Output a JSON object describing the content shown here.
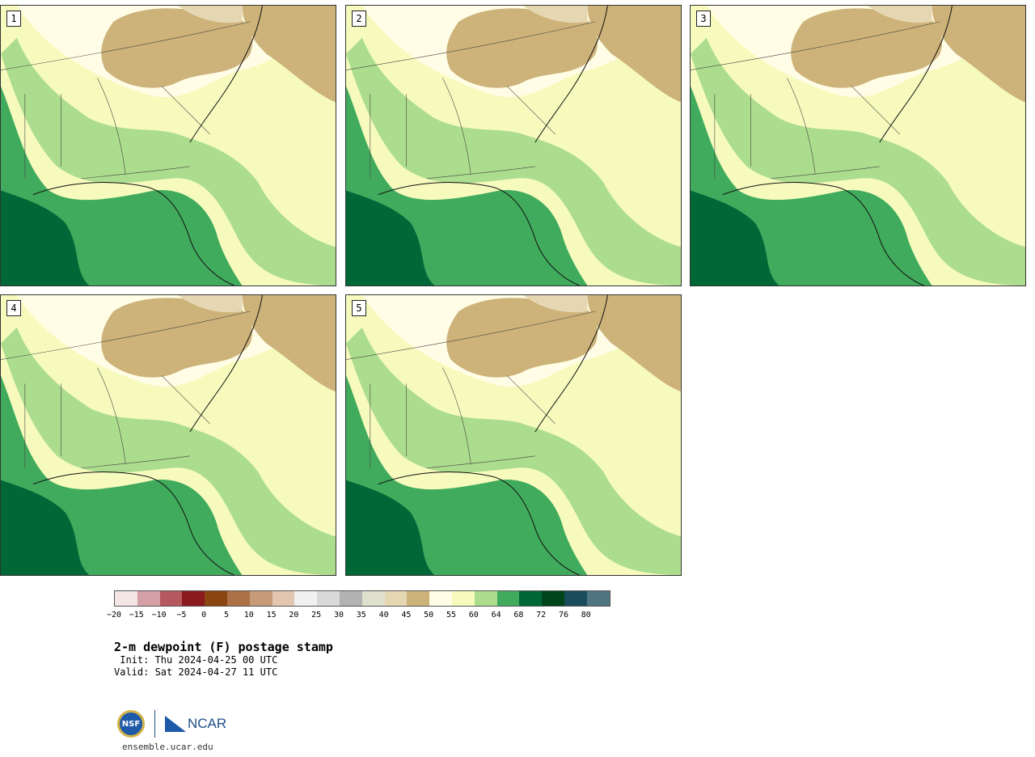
{
  "panels": [
    {
      "number": "1"
    },
    {
      "number": "2"
    },
    {
      "number": "3"
    },
    {
      "number": "4"
    },
    {
      "number": "5"
    }
  ],
  "colorbar": {
    "colors": [
      "#f5e6e6",
      "#d4a0a5",
      "#b5595f",
      "#8b1a1f",
      "#8b4510",
      "#ad7148",
      "#c79a78",
      "#e3c6b0",
      "#f0f0f0",
      "#d9d9d9",
      "#b3b3b3",
      "#e0e0cf",
      "#e6d7b3",
      "#cdb37a",
      "#fffde6",
      "#f6fbbd",
      "#acdc8e",
      "#41ab5d",
      "#006837",
      "#00441b",
      "#1a4d5b",
      "#4f7580"
    ],
    "tick_labels": [
      "−20",
      "−15",
      "−10",
      "−5",
      "0",
      "5",
      "10",
      "15",
      "20",
      "25",
      "30",
      "35",
      "40",
      "45",
      "50",
      "55",
      "60",
      "64",
      "68",
      "72",
      "76",
      "80"
    ]
  },
  "title": "2-m dewpoint (F) postage stamp",
  "init": " Init: Thu 2024-04-25 00 UTC",
  "valid": "Valid: Sat 2024-04-27 11 UTC",
  "logo": {
    "nsf": "NSF",
    "ncar": "NCAR"
  },
  "site": "ensemble.ucar.edu"
}
